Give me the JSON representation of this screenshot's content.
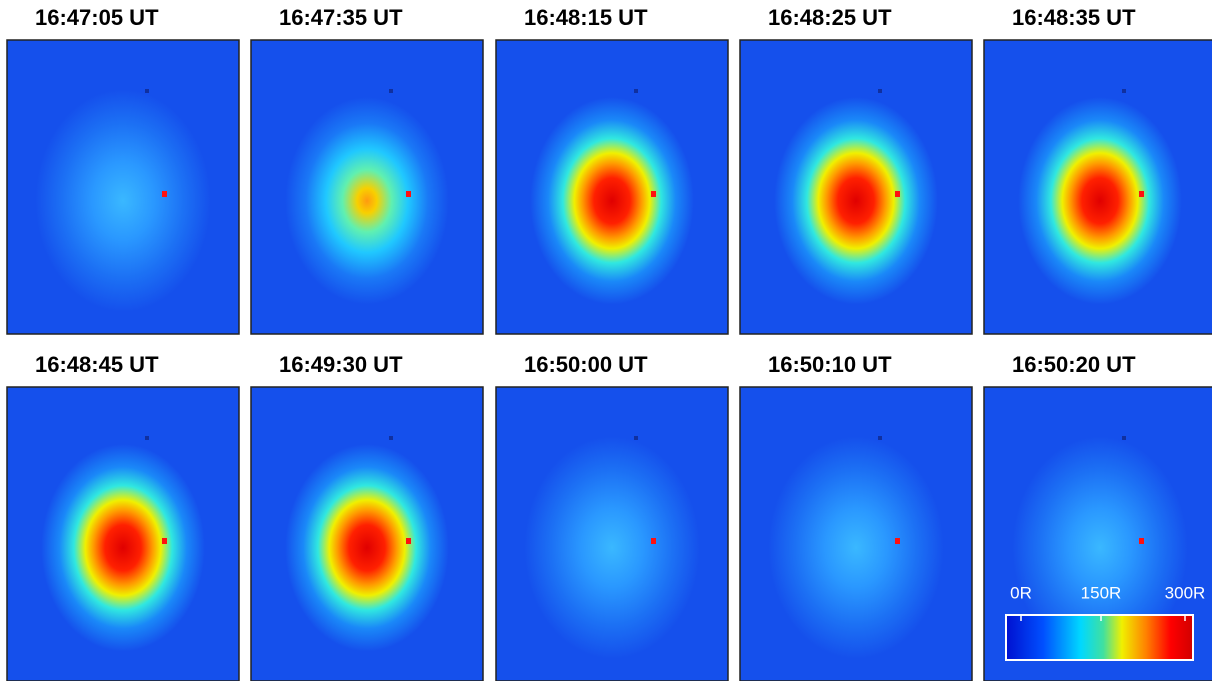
{
  "panels": [
    {
      "title": "16:47:05 UT"
    },
    {
      "title": "16:47:35 UT"
    },
    {
      "title": "16:48:15 UT"
    },
    {
      "title": "16:48:25 UT"
    },
    {
      "title": "16:48:35 UT"
    },
    {
      "title": "16:48:45 UT"
    },
    {
      "title": "16:49:30 UT"
    },
    {
      "title": "16:50:00 UT"
    },
    {
      "title": "16:50:10 UT"
    },
    {
      "title": "16:50:20 UT"
    }
  ],
  "colorbar": {
    "labels": [
      "0R",
      "150R",
      "300R"
    ]
  }
}
